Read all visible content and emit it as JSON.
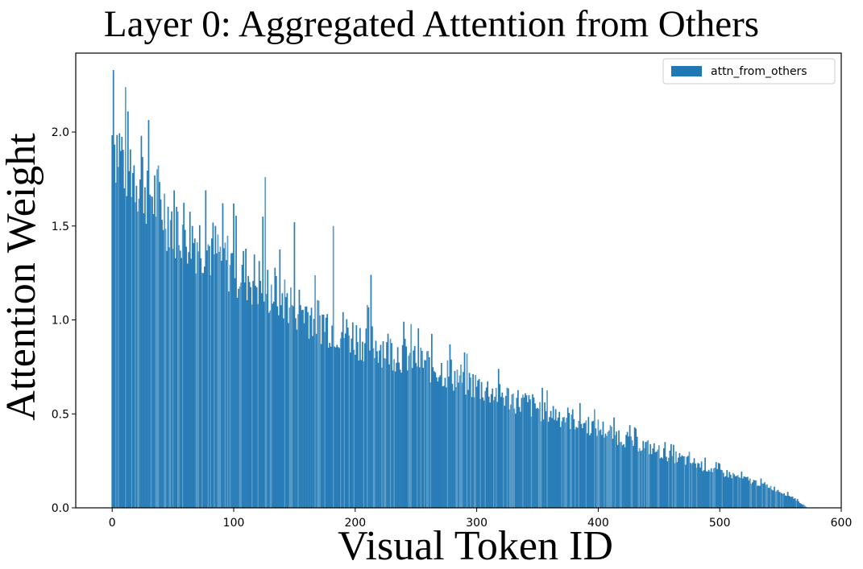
{
  "chart_data": {
    "type": "bar",
    "title": "Layer 0: Aggregated Attention from Others",
    "xlabel": "Visual Token ID",
    "ylabel": "Attention Weight",
    "xlim": [
      -30,
      600
    ],
    "ylim": [
      0,
      2.42
    ],
    "x_ticks": [
      0,
      100,
      200,
      300,
      400,
      500,
      600
    ],
    "y_ticks": [
      0.0,
      0.5,
      1.0,
      1.5,
      2.0
    ],
    "x_tick_labels": [
      "0",
      "100",
      "200",
      "300",
      "400",
      "500",
      "600"
    ],
    "y_tick_labels": [
      "0.0",
      "0.5",
      "1.0",
      "1.5",
      "2.0"
    ],
    "grid": false,
    "legend": {
      "location": "top-right",
      "entries": [
        "attn_from_others"
      ]
    },
    "bar_color": "#1f77b4",
    "series": [
      {
        "name": "attn_from_others",
        "x_range": [
          0,
          572
        ],
        "trend": [
          [
            0,
            2.05
          ],
          [
            10,
            1.92
          ],
          [
            25,
            1.8
          ],
          [
            50,
            1.58
          ],
          [
            75,
            1.45
          ],
          [
            100,
            1.33
          ],
          [
            125,
            1.22
          ],
          [
            150,
            1.12
          ],
          [
            175,
            1.02
          ],
          [
            200,
            0.94
          ],
          [
            250,
            0.82
          ],
          [
            300,
            0.67
          ],
          [
            350,
            0.55
          ],
          [
            400,
            0.44
          ],
          [
            450,
            0.31
          ],
          [
            500,
            0.2
          ],
          [
            540,
            0.12
          ],
          [
            560,
            0.06
          ],
          [
            572,
            0.0
          ]
        ],
        "peaks": [
          [
            1,
            2.33
          ],
          [
            13,
            2.11
          ],
          [
            24,
            1.98
          ],
          [
            77,
            1.69
          ],
          [
            100,
            1.62
          ],
          [
            124,
            1.55
          ],
          [
            126,
            1.76
          ],
          [
            150,
            1.52
          ],
          [
            182,
            1.5
          ],
          [
            213,
            1.24
          ],
          [
            278,
            0.87
          ]
        ]
      }
    ]
  }
}
